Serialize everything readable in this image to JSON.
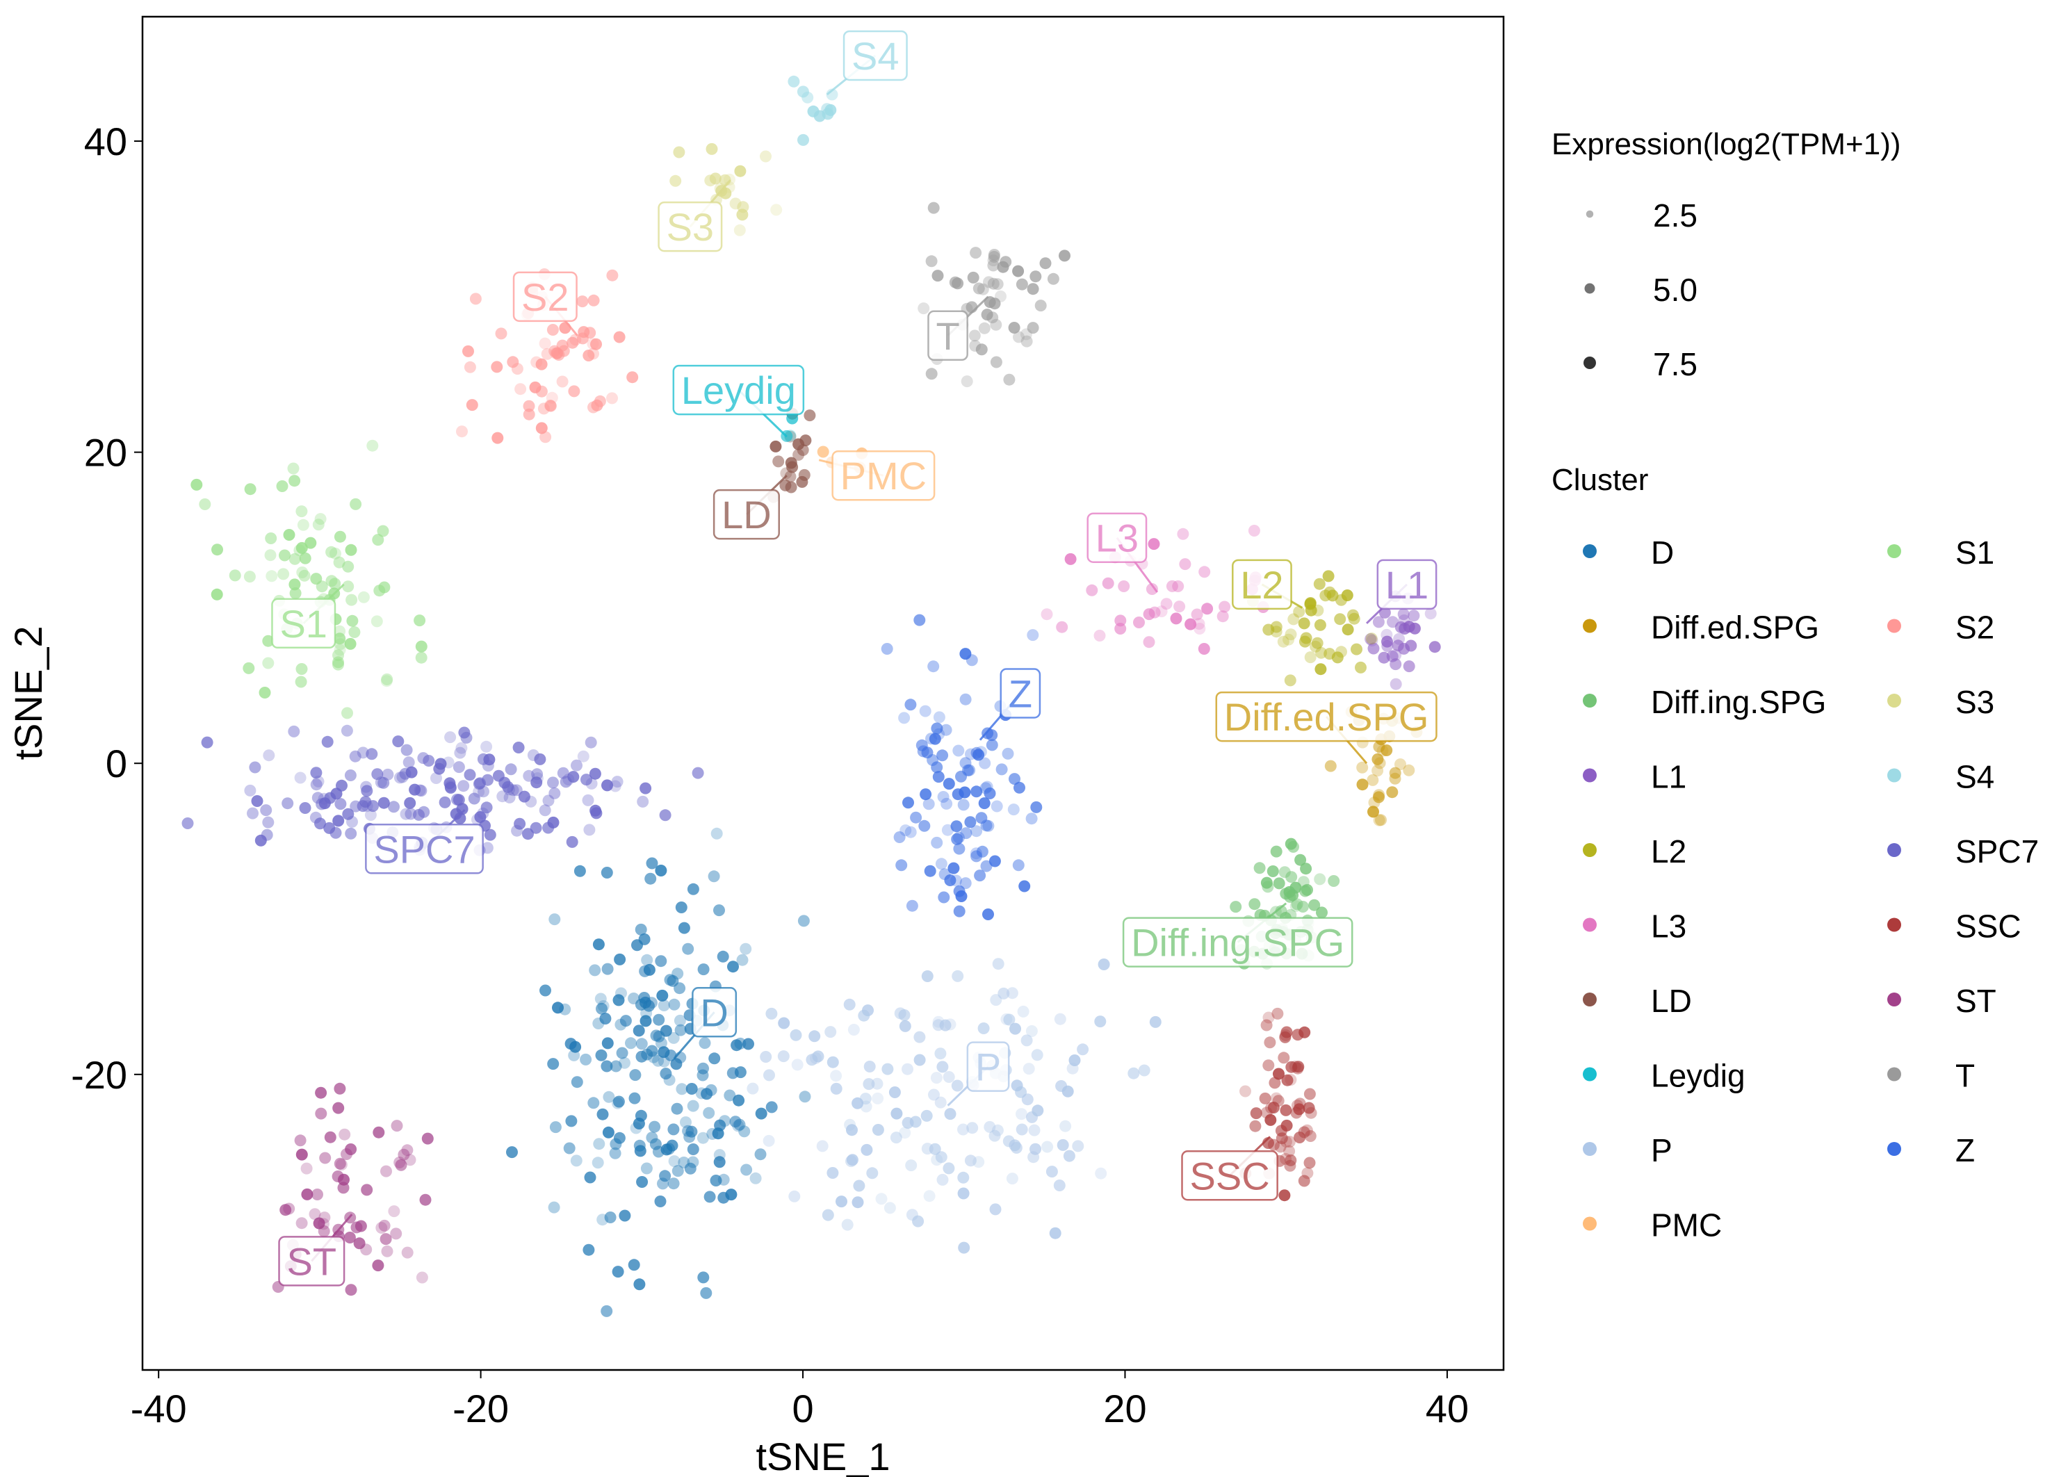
{
  "chart_data": {
    "type": "scatter",
    "xlabel": "tSNE_1",
    "ylabel": "tSNE_2",
    "xlim": [
      -41,
      43.5
    ],
    "ylim": [
      -39,
      48
    ],
    "xticks": [
      "-40",
      "-20",
      "0",
      "20",
      "40"
    ],
    "yticks": [
      "-20",
      "0",
      "20",
      "40"
    ],
    "legend_placement": "right",
    "size_legend": {
      "title": "Expression(log2(TPM+1))",
      "items": [
        {
          "label": "2.5",
          "value": 2.5
        },
        {
          "label": "5.0",
          "value": 5.0
        },
        {
          "label": "7.5",
          "value": 7.5
        }
      ]
    },
    "color_legend_title": "Cluster",
    "clusters": [
      {
        "name": "D",
        "color": "#1f77b4",
        "label": {
          "x": -5.5,
          "y": -16
        },
        "anchor": {
          "x": -8,
          "y": -19
        },
        "center": [
          -9,
          -20
        ],
        "spread": [
          5,
          8
        ],
        "n": 200
      },
      {
        "name": "Diff.ed.SPG",
        "color": "#c9980d",
        "label": {
          "x": 32.5,
          "y": 3
        },
        "anchor": {
          "x": 35,
          "y": 0
        },
        "center": [
          35.5,
          0
        ],
        "spread": [
          1.5,
          3
        ],
        "n": 30
      },
      {
        "name": "Diff.ing.SPG",
        "color": "#74c476",
        "label": {
          "x": 27,
          "y": -11.5
        },
        "anchor": {
          "x": 30,
          "y": -9
        },
        "center": [
          30,
          -9
        ],
        "spread": [
          2,
          3
        ],
        "n": 60
      },
      {
        "name": "L1",
        "color": "#8c5ec4",
        "label": {
          "x": 37.5,
          "y": 11.5
        },
        "anchor": {
          "x": 35,
          "y": 9
        },
        "center": [
          37,
          8
        ],
        "spread": [
          1.5,
          2
        ],
        "n": 30
      },
      {
        "name": "L2",
        "color": "#b5b41f",
        "label": {
          "x": 28.5,
          "y": 11.5
        },
        "anchor": {
          "x": 31,
          "y": 10
        },
        "center": [
          32,
          9
        ],
        "spread": [
          2.5,
          2.5
        ],
        "n": 40
      },
      {
        "name": "L3",
        "color": "#e377c2",
        "label": {
          "x": 19.5,
          "y": 14.5
        },
        "anchor": {
          "x": 22,
          "y": 11
        },
        "center": [
          22,
          11
        ],
        "spread": [
          5,
          2.5
        ],
        "n": 40
      },
      {
        "name": "LD",
        "color": "#8c564b",
        "label": {
          "x": -3.5,
          "y": 16
        },
        "anchor": {
          "x": -1,
          "y": 18.5
        },
        "center": [
          -0.7,
          19.5
        ],
        "spread": [
          0.9,
          2
        ],
        "n": 18
      },
      {
        "name": "Leydig",
        "color": "#17becf",
        "label": {
          "x": -4,
          "y": 24
        },
        "anchor": {
          "x": -1,
          "y": 21
        },
        "center": [
          -1,
          21.5
        ],
        "spread": [
          0.3,
          0.5
        ],
        "n": 3
      },
      {
        "name": "P",
        "color": "#aec7e8",
        "label": {
          "x": 11.5,
          "y": -19.5
        },
        "anchor": {
          "x": 9,
          "y": -22
        },
        "center": [
          9,
          -22
        ],
        "spread": [
          8,
          6
        ],
        "n": 150
      },
      {
        "name": "PMC",
        "color": "#ffbb78",
        "label": {
          "x": 5,
          "y": 18.5
        },
        "anchor": {
          "x": 1,
          "y": 19.5
        },
        "center": [
          2,
          19.5
        ],
        "spread": [
          1.5,
          1
        ],
        "n": 4
      },
      {
        "name": "S1",
        "color": "#98df8a",
        "label": {
          "x": -31,
          "y": 9
        },
        "anchor": {
          "x": -28.5,
          "y": 11.5
        },
        "center": [
          -30,
          12
        ],
        "spread": [
          4.5,
          5
        ],
        "n": 80
      },
      {
        "name": "S2",
        "color": "#ff9896",
        "label": {
          "x": -16,
          "y": 30
        },
        "anchor": {
          "x": -14,
          "y": 27.5
        },
        "center": [
          -16,
          26
        ],
        "spread": [
          3,
          3.5
        ],
        "n": 60
      },
      {
        "name": "S3",
        "color": "#dbdb8d",
        "label": {
          "x": -7,
          "y": 34.5
        },
        "anchor": {
          "x": -4.5,
          "y": 37.5
        },
        "center": [
          -5,
          37
        ],
        "spread": [
          2.5,
          2
        ],
        "n": 20
      },
      {
        "name": "S4",
        "color": "#9edae5",
        "label": {
          "x": 4.5,
          "y": 45.5
        },
        "anchor": {
          "x": 1.5,
          "y": 43
        },
        "center": [
          0.5,
          42
        ],
        "spread": [
          1.2,
          1.5
        ],
        "n": 10
      },
      {
        "name": "SPC7",
        "color": "#6a67c9",
        "label": {
          "x": -23.5,
          "y": -5.5
        },
        "anchor": {
          "x": -21,
          "y": -3
        },
        "center": [
          -22,
          -2
        ],
        "spread": [
          9,
          2.5
        ],
        "n": 170
      },
      {
        "name": "SSC",
        "color": "#ad3b3b",
        "label": {
          "x": 26.5,
          "y": -26.5
        },
        "anchor": {
          "x": 29,
          "y": -24
        },
        "center": [
          30,
          -22
        ],
        "spread": [
          1.5,
          4
        ],
        "n": 60
      },
      {
        "name": "ST",
        "color": "#a2418a",
        "label": {
          "x": -30.5,
          "y": -32
        },
        "anchor": {
          "x": -28,
          "y": -29
        },
        "center": [
          -28,
          -28
        ],
        "spread": [
          4,
          4
        ],
        "n": 60
      },
      {
        "name": "T",
        "color": "#9a9a9a",
        "label": {
          "x": 9,
          "y": 27.5
        },
        "anchor": {
          "x": 11.5,
          "y": 30
        },
        "center": [
          12,
          30
        ],
        "spread": [
          3,
          3.5
        ],
        "n": 50
      },
      {
        "name": "Z",
        "color": "#3b6ee3",
        "label": {
          "x": 13.5,
          "y": 4.5
        },
        "anchor": {
          "x": 11,
          "y": 1.5
        },
        "center": [
          10,
          -2
        ],
        "spread": [
          2.5,
          6
        ],
        "n": 100
      }
    ]
  }
}
